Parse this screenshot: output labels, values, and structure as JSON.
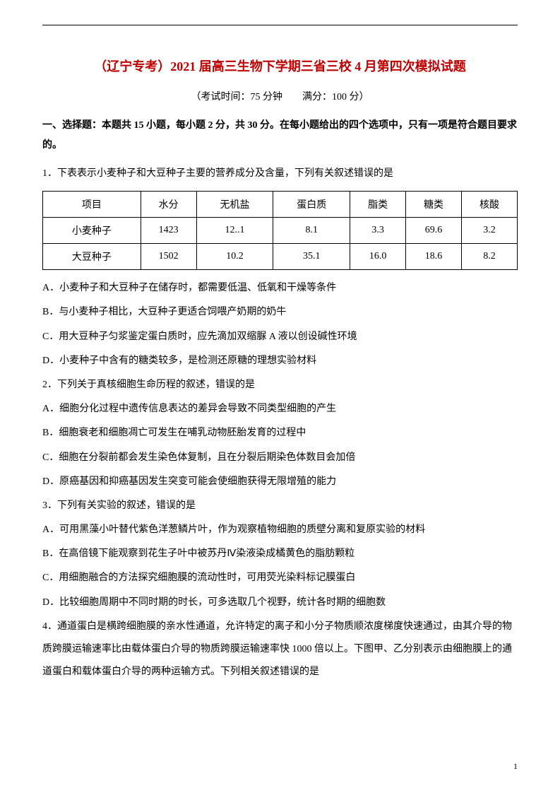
{
  "title": "（辽宁专考）2021 届高三生物下学期三省三校 4 月第四次模拟试题",
  "exam_info": "（考试时间：75 分钟　　满分：100 分）",
  "section_header": "一、选择题：本题共 15 小题，每小题 2 分，共 30 分。在每小题给出的四个选项中，只有一项是符合题目要求的。",
  "q1": {
    "text": "1．下表表示小麦种子和大豆种子主要的营养成分及含量，下列有关叙述错误的是",
    "table": {
      "columns": [
        "项目",
        "水分",
        "无机盐",
        "蛋白质",
        "脂类",
        "糖类",
        "核酸"
      ],
      "rows": [
        [
          "小麦种子",
          "1423",
          "12..1",
          "8.1",
          "3.3",
          "69.6",
          "3.2"
        ],
        [
          "大豆种子",
          "1502",
          "10.2",
          "35.1",
          "16.0",
          "18.6",
          "8.2"
        ]
      ]
    },
    "opt_a": "A．小麦种子和大豆种子在储存时，都需要低温、低氧和干燥等条件",
    "opt_b": "B．与小麦种子相比，大豆种子更适合饲喂产奶期的奶牛",
    "opt_c": "C．用大豆种子匀浆鉴定蛋白质时，应先滴加双缩脲 A 液以创设碱性环境",
    "opt_d": "D．小麦种子中含有的糖类较多，是检测还原糖的理想实验材料"
  },
  "q2": {
    "text": "2．下列关于真核细胞生命历程的叙述，错误的是",
    "opt_a": "A．细胞分化过程中遗传信息表达的差异会导致不同类型细胞的产生",
    "opt_b": "B．细胞衰老和细胞凋亡可发生在哺乳动物胚胎发育的过程中",
    "opt_c": "C．细胞在分裂前都会发生染色体复制，且在分裂后期染色体数目会加倍",
    "opt_d": "D．原癌基因和抑癌基因发生突变可能会使细胞获得无限增殖的能力"
  },
  "q3": {
    "text": "3．下列有关实验的叙述，错误的是",
    "opt_a": "A．可用黑藻小叶替代紫色洋葱鳞片叶，作为观察植物细胞的质壁分离和复原实验的材料",
    "opt_b": "B．在高倍镜下能观察到花生子叶中被苏丹Ⅳ染液染成橘黄色的脂肪颗粒",
    "opt_c": "C．用细胞融合的方法探究细胞膜的流动性时，可用荧光染料标记膜蛋白",
    "opt_d": "D．比较细胞周期中不同时期的时长，可多选取几个视野，统计各时期的细胞数"
  },
  "q4": {
    "text": "4．通道蛋白是横跨细胞膜的亲水性通道，允许特定的离子和小分子物质顺浓度梯度快速通过，由其介导的物质跨膜运输速率比由载体蛋白介导的物质跨膜运输速率快 1000 倍以上。下图甲、乙分别表示由细胞膜上的通道蛋白和载体蛋白介导的两种运输方式。下列相关叙述错误的是"
  },
  "page_number": "1",
  "colors": {
    "title_color": "#c00000",
    "text_color": "#000000",
    "border_color": "#000000",
    "background_color": "#ffffff"
  }
}
